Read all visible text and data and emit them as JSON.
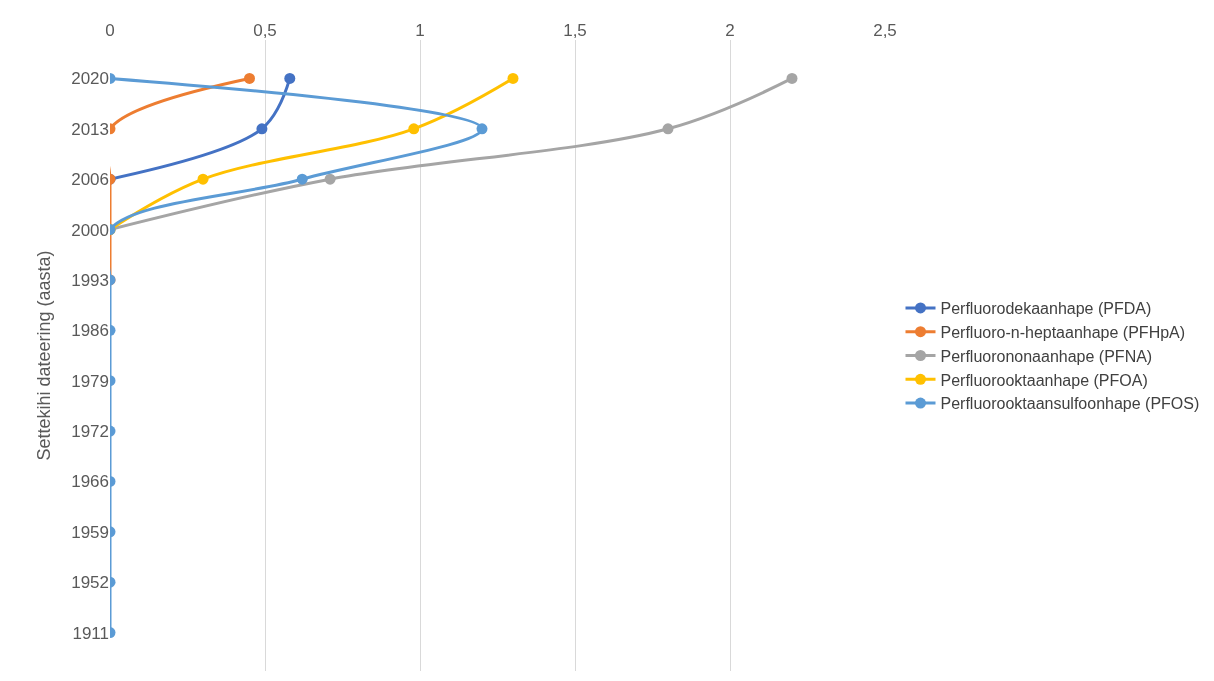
{
  "chart_data": {
    "type": "line",
    "orientation": "horizontal",
    "ylabel": "Settekihi dateering (aasta)",
    "categories": [
      "2020",
      "2013",
      "2006",
      "2000",
      "1993",
      "1986",
      "1979",
      "1972",
      "1966",
      "1959",
      "1952",
      "1911"
    ],
    "series": [
      {
        "name": "Perfluorodekaanhape (PFDA)",
        "color": "#4472c4",
        "values": [
          0.58,
          0.49,
          0,
          null,
          null,
          null,
          null,
          null,
          null,
          null,
          null,
          null
        ]
      },
      {
        "name": "Perfluoro-n-heptaanhape (PFHpA)",
        "color": "#ed7d31",
        "values": [
          0.45,
          0,
          0,
          0,
          0,
          null,
          null,
          null,
          null,
          null,
          null,
          null
        ]
      },
      {
        "name": "Perfluorononaanhape (PFNA)",
        "color": "#a5a5a5",
        "values": [
          2.2,
          1.8,
          0.71,
          0,
          null,
          null,
          null,
          null,
          null,
          null,
          null,
          null
        ]
      },
      {
        "name": "Perfluorooktaanhape (PFOA)",
        "color": "#ffc000",
        "values": [
          1.3,
          0.98,
          0.3,
          0,
          null,
          null,
          null,
          null,
          null,
          null,
          null,
          null
        ]
      },
      {
        "name": "Perfluorooktaansulfoonhape (PFOS)",
        "color": "#5b9bd5",
        "values": [
          0,
          1.2,
          0.62,
          0,
          0,
          0,
          0,
          0,
          0,
          0,
          0,
          0
        ]
      }
    ],
    "xlim": [
      0,
      2.5
    ],
    "xticks": [
      0,
      {
        "value": 0.5,
        "label": "0,5"
      },
      1,
      {
        "value": 1.5,
        "label": "1,5"
      },
      2,
      {
        "value": 2.5,
        "label": "2,5"
      }
    ],
    "grid": "x",
    "legend": "right",
    "marker": "circle",
    "line_style": "solid"
  }
}
